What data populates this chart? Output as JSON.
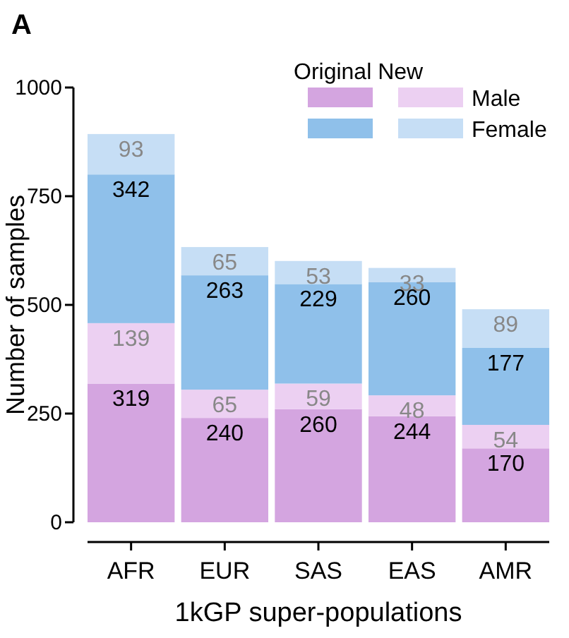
{
  "chart_data": {
    "type": "bar",
    "title": "A",
    "xlabel": "1kGP super-populations",
    "ylabel": "Number of samples",
    "legend_title": "Original New",
    "categories": [
      "AFR",
      "EUR",
      "SAS",
      "EAS",
      "AMR"
    ],
    "stacked": true,
    "data_labels": true,
    "legend": "top right",
    "ylim": [
      0,
      1000
    ],
    "yticks": [
      0,
      250,
      500,
      750,
      1000
    ],
    "series": [
      {
        "color": "#d4a5e0",
        "values": [
          319,
          240,
          260,
          244,
          170
        ]
      },
      {
        "name": "Male",
        "color": "#ecd0f2",
        "values": [
          139,
          65,
          59,
          48,
          54
        ]
      },
      {
        "color": "#8fc0ea",
        "values": [
          342,
          263,
          229,
          260,
          177
        ]
      },
      {
        "name": "Female",
        "color": "#c6def5",
        "values": [
          93,
          65,
          53,
          33,
          89
        ]
      }
    ]
  }
}
